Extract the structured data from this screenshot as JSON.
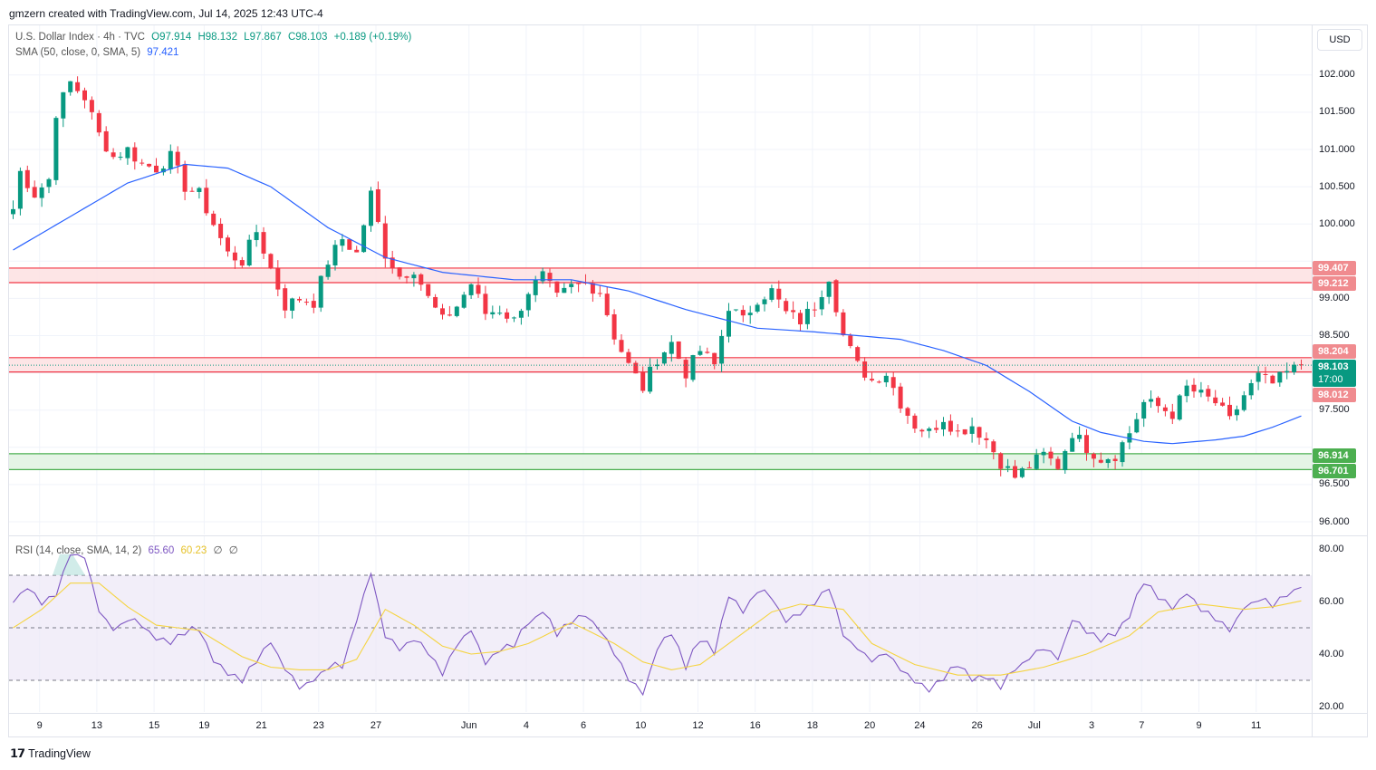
{
  "header": "gmzern created with TradingView.com, Jul 14, 2025 12:43 UTC-4",
  "legend": {
    "symbol": "U.S. Dollar Index · 4h · TVC",
    "open": "O97.914",
    "high": "H98.132",
    "low": "L97.867",
    "close": "C98.103",
    "change": "+0.189 (+0.19%)",
    "sma_label": "SMA (50, close, 0, SMA, 5)",
    "sma_value": "97.421",
    "rsi_label": "RSI (14, close, SMA, 14, 2)",
    "rsi_value": "65.60",
    "rsi_ma_value": "60.23",
    "rsi_extra1": "∅",
    "rsi_extra2": "∅"
  },
  "currency": "USD",
  "price_axis": [
    "102.000",
    "101.500",
    "101.000",
    "100.500",
    "100.000",
    "99.000",
    "98.500",
    "97.500",
    "96.500",
    "96.000"
  ],
  "rsi_axis": [
    "80.00",
    "60.00",
    "40.00",
    "20.00"
  ],
  "badges": {
    "zone_upper_top": "99.407",
    "zone_upper_bottom": "99.212",
    "zone_mid_top": "98.204",
    "last_price": "98.103",
    "countdown": "17:00",
    "zone_mid_bottom": "98.012",
    "zone_low_top": "96.914",
    "zone_low_bottom": "96.701"
  },
  "time_axis": [
    "9",
    "13",
    "15",
    "19",
    "21",
    "23",
    "27",
    "Jun",
    "4",
    "6",
    "10",
    "12",
    "16",
    "18",
    "20",
    "24",
    "26",
    "Jul",
    "3",
    "7",
    "9",
    "11"
  ],
  "brand": "TradingView",
  "colors": {
    "up": "#089981",
    "down": "#f23645",
    "sma": "#2962ff",
    "rsi": "#7e57c2",
    "rsi_ma": "#f5d442",
    "resistance_fill": "#fde2e3",
    "resistance_line": "#f23645",
    "support_fill": "#e2f3e3",
    "support_line": "#4caf50"
  },
  "chart_data": [
    {
      "type": "candlestick",
      "title": "U.S. Dollar Index · 4h · TVC",
      "ylim": [
        95.85,
        102.4
      ],
      "zones": [
        {
          "kind": "resistance",
          "top": 99.407,
          "bottom": 99.212
        },
        {
          "kind": "resistance",
          "top": 98.204,
          "bottom": 98.012
        },
        {
          "kind": "support",
          "top": 96.914,
          "bottom": 96.701
        }
      ],
      "last_price": 98.103,
      "close_anchors": [
        [
          0,
          100.2
        ],
        [
          1,
          100.7
        ],
        [
          3,
          100.4
        ],
        [
          5,
          100.6
        ],
        [
          6,
          101.5
        ],
        [
          8,
          101.9
        ],
        [
          10,
          101.7
        ],
        [
          12,
          101.2
        ],
        [
          14,
          100.9
        ],
        [
          16,
          101.0
        ],
        [
          18,
          100.8
        ],
        [
          20,
          100.75
        ],
        [
          22,
          100.9
        ],
        [
          24,
          100.5
        ],
        [
          26,
          100.4
        ],
        [
          28,
          100.0
        ],
        [
          30,
          99.6
        ],
        [
          32,
          99.5
        ],
        [
          34,
          99.9
        ],
        [
          36,
          99.4
        ],
        [
          38,
          98.9
        ],
        [
          40,
          99.0
        ],
        [
          42,
          98.95
        ],
        [
          44,
          99.5
        ],
        [
          46,
          99.8
        ],
        [
          48,
          99.6
        ],
        [
          50,
          100.4
        ],
        [
          52,
          99.6
        ],
        [
          54,
          99.3
        ],
        [
          56,
          99.4
        ],
        [
          58,
          99.0
        ],
        [
          60,
          98.7
        ],
        [
          62,
          98.9
        ],
        [
          64,
          99.2
        ],
        [
          66,
          98.8
        ],
        [
          68,
          98.85
        ],
        [
          70,
          98.7
        ],
        [
          72,
          99.1
        ],
        [
          74,
          99.3
        ],
        [
          76,
          99.0
        ],
        [
          78,
          99.15
        ],
        [
          80,
          99.2
        ],
        [
          82,
          99.1
        ],
        [
          84,
          98.5
        ],
        [
          86,
          98.1
        ],
        [
          88,
          97.8
        ],
        [
          90,
          98.2
        ],
        [
          92,
          98.4
        ],
        [
          94,
          98.0
        ],
        [
          96,
          98.3
        ],
        [
          98,
          98.1
        ],
        [
          100,
          98.9
        ],
        [
          102,
          98.7
        ],
        [
          104,
          99.0
        ],
        [
          106,
          99.1
        ],
        [
          108,
          98.8
        ],
        [
          110,
          98.7
        ],
        [
          112,
          98.9
        ],
        [
          114,
          99.3
        ],
        [
          116,
          98.5
        ],
        [
          118,
          98.1
        ],
        [
          120,
          97.9
        ],
        [
          122,
          98.0
        ],
        [
          124,
          97.6
        ],
        [
          126,
          97.3
        ],
        [
          128,
          97.2
        ],
        [
          130,
          97.4
        ],
        [
          132,
          97.2
        ],
        [
          134,
          97.3
        ],
        [
          136,
          97.1
        ],
        [
          138,
          96.8
        ],
        [
          140,
          96.6
        ],
        [
          142,
          96.75
        ],
        [
          144,
          96.9
        ],
        [
          146,
          96.75
        ],
        [
          148,
          97.2
        ],
        [
          150,
          97.0
        ],
        [
          152,
          96.85
        ],
        [
          154,
          96.9
        ],
        [
          156,
          97.2
        ],
        [
          158,
          97.6
        ],
        [
          160,
          97.55
        ],
        [
          162,
          97.45
        ],
        [
          164,
          97.8
        ],
        [
          166,
          97.7
        ],
        [
          168,
          97.6
        ],
        [
          170,
          97.35
        ],
        [
          172,
          97.7
        ],
        [
          174,
          97.95
        ],
        [
          176,
          97.85
        ],
        [
          178,
          98.0
        ],
        [
          180,
          98.1
        ]
      ],
      "sma_points": [
        [
          0,
          99.65
        ],
        [
          8,
          100.1
        ],
        [
          16,
          100.55
        ],
        [
          24,
          100.8
        ],
        [
          30,
          100.75
        ],
        [
          36,
          100.5
        ],
        [
          44,
          99.95
        ],
        [
          52,
          99.55
        ],
        [
          60,
          99.35
        ],
        [
          70,
          99.25
        ],
        [
          78,
          99.25
        ],
        [
          86,
          99.1
        ],
        [
          94,
          98.85
        ],
        [
          104,
          98.6
        ],
        [
          112,
          98.55
        ],
        [
          118,
          98.5
        ],
        [
          124,
          98.45
        ],
        [
          130,
          98.3
        ],
        [
          136,
          98.1
        ],
        [
          142,
          97.75
        ],
        [
          148,
          97.35
        ],
        [
          152,
          97.2
        ],
        [
          158,
          97.08
        ],
        [
          162,
          97.05
        ],
        [
          168,
          97.1
        ],
        [
          172,
          97.15
        ],
        [
          176,
          97.27
        ],
        [
          180,
          97.421
        ]
      ]
    },
    {
      "type": "line",
      "title": "RSI (14, close, SMA, 14, 2)",
      "ylim": [
        20,
        80
      ],
      "bands": [
        30,
        50,
        70
      ],
      "rsi_anchors": [
        [
          0,
          60
        ],
        [
          2,
          66
        ],
        [
          4,
          59
        ],
        [
          6,
          63
        ],
        [
          8,
          78
        ],
        [
          10,
          77
        ],
        [
          12,
          57
        ],
        [
          14,
          49
        ],
        [
          16,
          53
        ],
        [
          18,
          51
        ],
        [
          20,
          46
        ],
        [
          22,
          44
        ],
        [
          24,
          48
        ],
        [
          26,
          50
        ],
        [
          28,
          38
        ],
        [
          30,
          32
        ],
        [
          32,
          30
        ],
        [
          34,
          38
        ],
        [
          36,
          45
        ],
        [
          38,
          34
        ],
        [
          40,
          27
        ],
        [
          42,
          30
        ],
        [
          44,
          35
        ],
        [
          46,
          36
        ],
        [
          48,
          53
        ],
        [
          50,
          71
        ],
        [
          52,
          47
        ],
        [
          54,
          42
        ],
        [
          56,
          46
        ],
        [
          58,
          40
        ],
        [
          60,
          33
        ],
        [
          62,
          43
        ],
        [
          64,
          49
        ],
        [
          66,
          37
        ],
        [
          68,
          42
        ],
        [
          70,
          44
        ],
        [
          72,
          52
        ],
        [
          74,
          56
        ],
        [
          76,
          48
        ],
        [
          78,
          52
        ],
        [
          80,
          55
        ],
        [
          82,
          49
        ],
        [
          84,
          41
        ],
        [
          86,
          30
        ],
        [
          88,
          25
        ],
        [
          90,
          42
        ],
        [
          92,
          48
        ],
        [
          94,
          35
        ],
        [
          96,
          46
        ],
        [
          98,
          41
        ],
        [
          100,
          62
        ],
        [
          102,
          57
        ],
        [
          104,
          64
        ],
        [
          106,
          62
        ],
        [
          108,
          52
        ],
        [
          110,
          56
        ],
        [
          112,
          59
        ],
        [
          114,
          65
        ],
        [
          116,
          47
        ],
        [
          118,
          42
        ],
        [
          120,
          37
        ],
        [
          122,
          41
        ],
        [
          124,
          35
        ],
        [
          126,
          30
        ],
        [
          128,
          27
        ],
        [
          130,
          31
        ],
        [
          132,
          36
        ],
        [
          134,
          30
        ],
        [
          136,
          32
        ],
        [
          138,
          28
        ],
        [
          140,
          35
        ],
        [
          142,
          38
        ],
        [
          144,
          42
        ],
        [
          146,
          38
        ],
        [
          148,
          53
        ],
        [
          150,
          49
        ],
        [
          152,
          45
        ],
        [
          154,
          48
        ],
        [
          156,
          55
        ],
        [
          158,
          68
        ],
        [
          160,
          61
        ],
        [
          162,
          58
        ],
        [
          164,
          63
        ],
        [
          166,
          57
        ],
        [
          168,
          54
        ],
        [
          170,
          49
        ],
        [
          172,
          58
        ],
        [
          174,
          61
        ],
        [
          176,
          59
        ],
        [
          178,
          62
        ],
        [
          180,
          65.6
        ]
      ],
      "rsi_ma_points": [
        [
          0,
          50
        ],
        [
          4,
          57
        ],
        [
          8,
          67
        ],
        [
          12,
          67
        ],
        [
          16,
          58
        ],
        [
          20,
          51
        ],
        [
          26,
          49
        ],
        [
          32,
          39
        ],
        [
          36,
          35
        ],
        [
          40,
          34
        ],
        [
          44,
          34
        ],
        [
          48,
          38
        ],
        [
          52,
          57
        ],
        [
          56,
          51
        ],
        [
          60,
          43
        ],
        [
          64,
          40
        ],
        [
          68,
          41
        ],
        [
          72,
          44
        ],
        [
          78,
          52
        ],
        [
          84,
          44
        ],
        [
          88,
          37
        ],
        [
          92,
          34
        ],
        [
          96,
          36
        ],
        [
          100,
          44
        ],
        [
          106,
          56
        ],
        [
          110,
          59
        ],
        [
          116,
          57
        ],
        [
          120,
          44
        ],
        [
          126,
          36
        ],
        [
          132,
          32
        ],
        [
          138,
          32
        ],
        [
          144,
          35
        ],
        [
          150,
          40
        ],
        [
          156,
          47
        ],
        [
          160,
          56
        ],
        [
          166,
          59
        ],
        [
          172,
          57
        ],
        [
          176,
          58
        ],
        [
          180,
          60.23
        ]
      ]
    }
  ]
}
